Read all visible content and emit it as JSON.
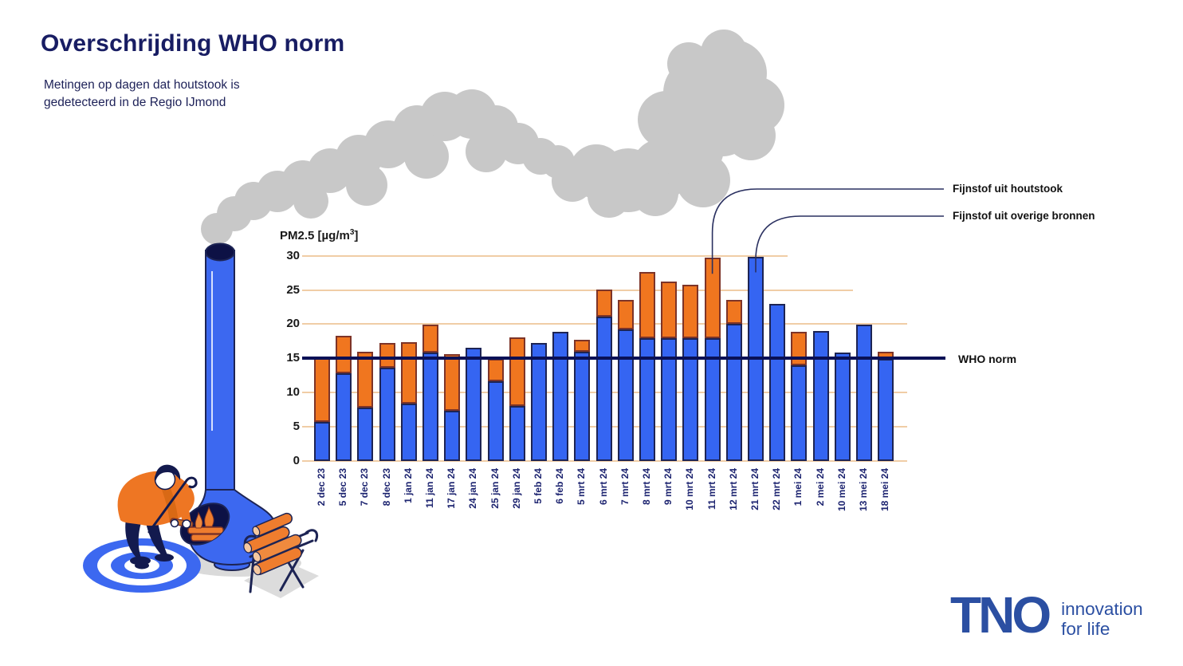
{
  "page": {
    "title": "Overschrijding WHO norm",
    "subtitle_line1": "Metingen op dagen dat houtstook is",
    "subtitle_line2": "gedetecteerd in de Regio IJmond"
  },
  "chart_data": {
    "type": "bar",
    "stacked": true,
    "title": "Overschrijding WHO norm",
    "ylabel_prefix": "PM2.5 [µg/m",
    "ylabel_sup": "3",
    "ylabel_suffix": "]",
    "ylim": [
      0,
      30
    ],
    "yticks": [
      0,
      5,
      10,
      15,
      20,
      25,
      30
    ],
    "grid": true,
    "legend_position": "right-annotations",
    "categories": [
      "2 dec 23",
      "5 dec 23",
      "7 dec 23",
      "8 dec 23",
      "1 jan 24",
      "11 jan 24",
      "17 jan 24",
      "24 jan 24",
      "25 jan 24",
      "29 jan 24",
      "5 feb 24",
      "6 feb 24",
      "5 mrt 24",
      "6 mrt 24",
      "7 mrt 24",
      "8 mrt 24",
      "9 mrt 24",
      "10 mrt 24",
      "11 mrt 24",
      "12 mrt 24",
      "21 mrt 24",
      "22 mrt 24",
      "1 mei 24",
      "2 mei 24",
      "10 mei 24",
      "13 mei 24",
      "18 mei 24"
    ],
    "series": [
      {
        "name": "Fijnstof uit overige bronnen",
        "color": "#3565f2",
        "values": [
          5.7,
          12.8,
          7.8,
          13.6,
          8.4,
          15.8,
          7.3,
          16.5,
          11.7,
          8.1,
          17.2,
          18.9,
          16.0,
          21.1,
          19.2,
          17.9,
          17.9,
          17.9,
          17.9,
          20.0,
          29.9,
          23.0,
          14.0,
          19.0,
          15.9,
          19.9,
          14.9
        ]
      },
      {
        "name": "Fijnstof uit houtstook",
        "color": "#f0761f",
        "values": [
          9.6,
          5.5,
          8.2,
          3.7,
          9.0,
          4.1,
          8.3,
          0,
          3.2,
          10.0,
          0,
          0,
          1.7,
          4.0,
          4.3,
          9.7,
          8.3,
          7.9,
          11.8,
          3.6,
          0,
          0,
          4.9,
          0,
          0,
          0,
          1.1
        ]
      }
    ],
    "who_norm": {
      "label": "WHO norm",
      "value": 15
    },
    "annotations": [
      {
        "label": "Fijnstof uit houtstook",
        "category": "11 mrt 24"
      },
      {
        "label": "Fijnstof uit overige bronnen",
        "category": "21 mrt 24"
      }
    ]
  },
  "logo": {
    "name": "TNO",
    "tagline_line1": "innovation",
    "tagline_line2": "for life"
  },
  "palette": {
    "bar_blue": "#3565f2",
    "bar_blue_outline": "#1d2454",
    "bar_orange": "#f0761f",
    "bar_orange_outline": "#7d3428",
    "gridline": "#f0cda6",
    "who_line": "#0a1156",
    "title_navy": "#181d63",
    "smoke_gray": "#c8c8c8",
    "illustration_blue": "#3c68f0",
    "tno_blue": "#2b4fa2"
  }
}
